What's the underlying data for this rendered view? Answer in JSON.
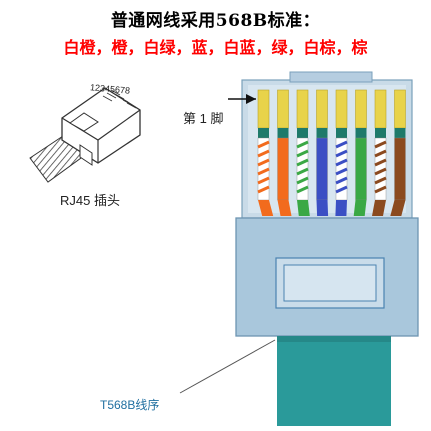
{
  "header": {
    "title": "普通网线采用568B标准：",
    "order_text": "白橙，橙，白绿，蓝，白蓝，绿，白棕，棕",
    "order_color": "#ff0000"
  },
  "plug": {
    "label": "RJ45 插头",
    "pin_numbers": "12345678"
  },
  "connector": {
    "pin1_label": "第 1 脚",
    "standard_label": "T568B线序",
    "body_color": "#a9c7dc",
    "cable_color": "#2a9a9a"
  },
  "wires": [
    {
      "name": "white-orange",
      "base": "#ffffff",
      "stripe": "#f26b1d"
    },
    {
      "name": "orange",
      "base": "#f26b1d",
      "stripe": ""
    },
    {
      "name": "white-green",
      "base": "#ffffff",
      "stripe": "#3aa845"
    },
    {
      "name": "blue",
      "base": "#3b4fc4",
      "stripe": ""
    },
    {
      "name": "white-blue",
      "base": "#ffffff",
      "stripe": "#3b4fc4"
    },
    {
      "name": "green",
      "base": "#3aa845",
      "stripe": ""
    },
    {
      "name": "white-brown",
      "base": "#ffffff",
      "stripe": "#8b4a1f"
    },
    {
      "name": "brown",
      "base": "#8b4a1f",
      "stripe": ""
    }
  ]
}
